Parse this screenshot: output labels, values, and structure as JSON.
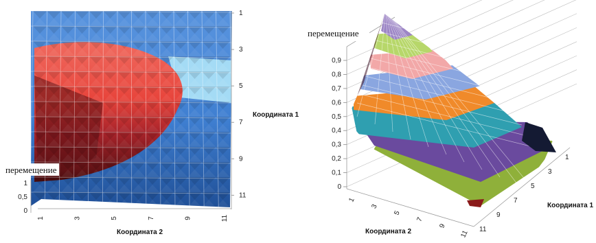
{
  "chart_data": [
    {
      "type": "heatmap",
      "view": "surface-top",
      "z_caption": "перемещение",
      "xlabel": "Координата 2",
      "ylabel": "Координата 1",
      "x_ticks": [
        "1",
        "3",
        "5",
        "7",
        "9",
        "11"
      ],
      "y_ticks": [
        "1",
        "3",
        "5",
        "7",
        "9",
        "11"
      ],
      "z_ticks": [
        "0",
        "0,5",
        "1"
      ],
      "colors": {
        "high": "#e8453c",
        "low": "#3f7fd1",
        "light": "#9fd6f2",
        "dark": "#4a0d0f"
      }
    },
    {
      "type": "surface",
      "view": "3d",
      "z_caption": "перемещение",
      "xlabel": "Координата 2",
      "ylabel": "Координата 1",
      "x_ticks": [
        "1",
        "3",
        "5",
        "7",
        "9",
        "11"
      ],
      "y_ticks": [
        "1",
        "3",
        "5",
        "7",
        "9",
        "11"
      ],
      "z_ticks": [
        "0",
        "0,1",
        "0,2",
        "0,3",
        "0,4",
        "0,5",
        "0,6",
        "0,7",
        "0,8",
        "0,9"
      ],
      "zlim": [
        0,
        0.9
      ],
      "band_colors": [
        "#7a1f1f",
        "#8fb03a",
        "#6a4a9e",
        "#2f9fb0",
        "#f08a2a",
        "#8aa6e0",
        "#f2a8a8",
        "#b7d76a",
        "#9d86c6"
      ]
    }
  ]
}
